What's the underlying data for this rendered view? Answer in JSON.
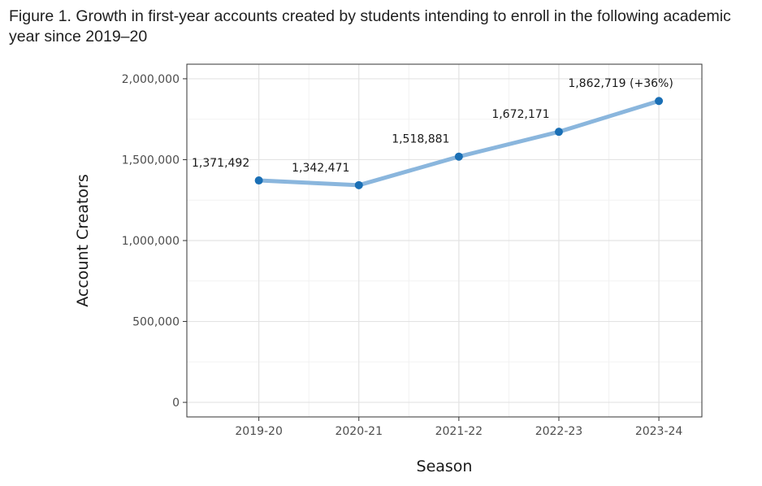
{
  "chart_data": {
    "type": "line",
    "title": "Figure 1. Growth in first-year accounts created by students intending to enroll in the following academic year since 2019–20",
    "xlabel": "Season",
    "ylabel": "Account Creators",
    "categories": [
      "2019-20",
      "2020-21",
      "2021-22",
      "2022-23",
      "2023-24"
    ],
    "values": [
      1371492,
      1342471,
      1518881,
      1672171,
      1862719
    ],
    "data_labels": [
      "1,371,492",
      "1,342,471",
      "1,518,881",
      "1,672,171",
      "1,862,719 (+36%)"
    ],
    "ylim": [
      -90000,
      2090000
    ],
    "yticks": [
      0,
      500000,
      1000000,
      1500000,
      2000000
    ],
    "ytick_labels": [
      "0",
      "500,000",
      "1,000,000",
      "1,500,000",
      "2,000,000"
    ],
    "grid": true,
    "line_color": "#8ab6dd",
    "point_color": "#1a6fb5"
  }
}
